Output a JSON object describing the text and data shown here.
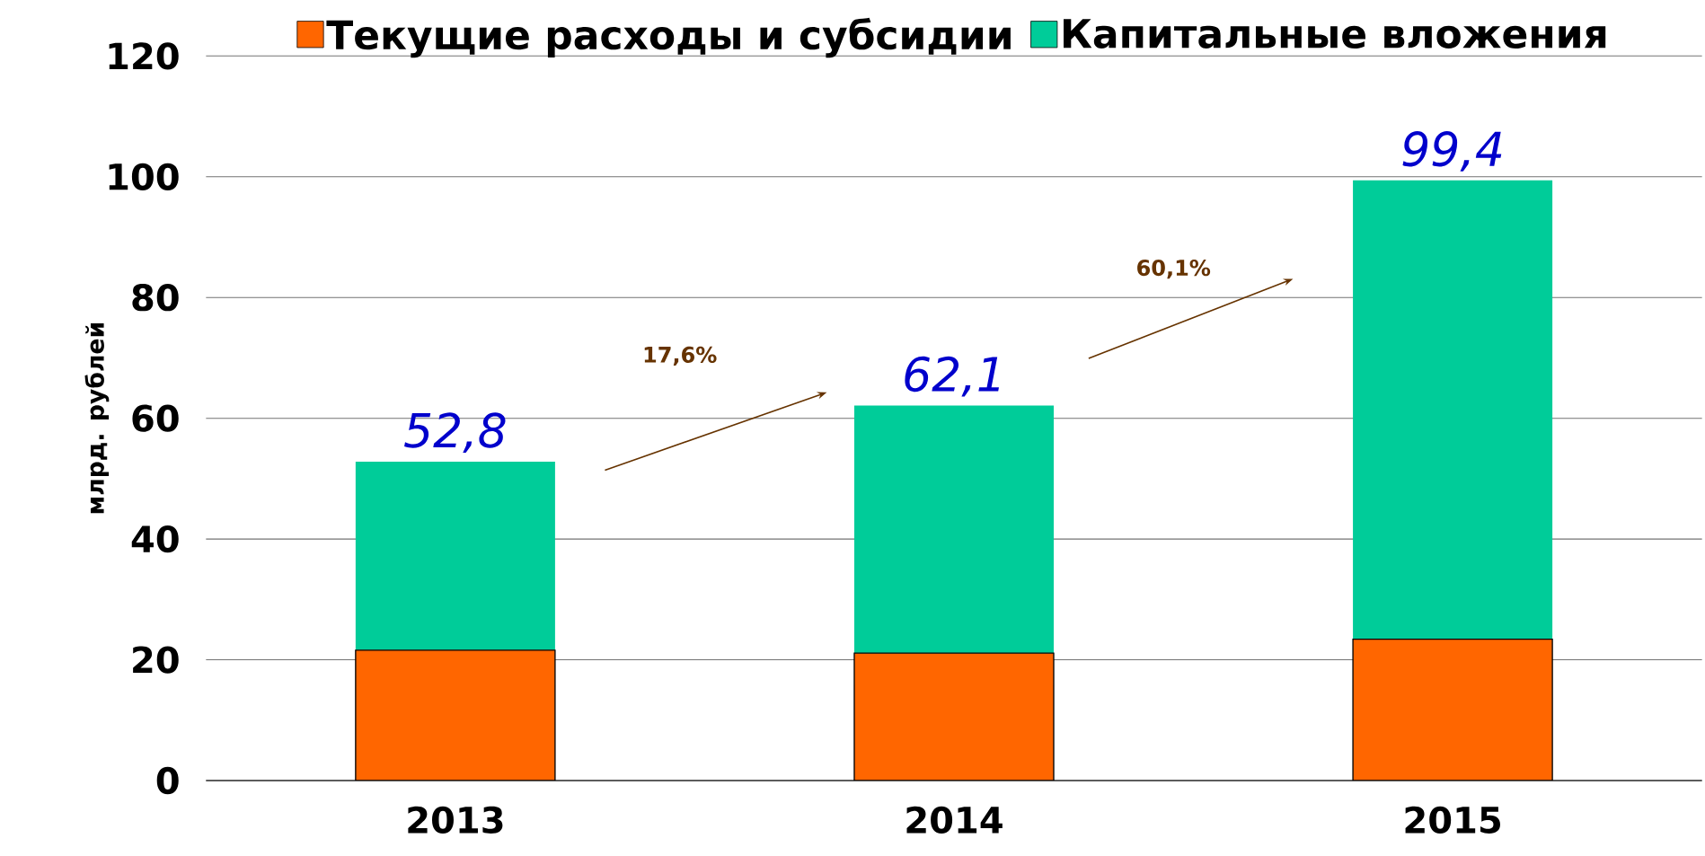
{
  "chart_data": {
    "type": "bar",
    "stacked": true,
    "categories": [
      "2013",
      "2014",
      "2015"
    ],
    "series": [
      {
        "name": "Текущие расходы и субсидии",
        "color": "#ff6600",
        "values": [
          21.6,
          21.1,
          23.4
        ]
      },
      {
        "name": "Капитальные вложения",
        "color": "#00cc99",
        "values": [
          31.2,
          41.0,
          76.0
        ]
      }
    ],
    "totals": [
      "52,8",
      "62,1",
      "99,4"
    ],
    "ylabel": "млрд.  рублей",
    "ylim": [
      0,
      120
    ],
    "yticks": [
      0,
      20,
      40,
      60,
      80,
      100,
      120
    ],
    "grid": "y",
    "legend": "top",
    "annotations": [
      "17,6%",
      "60,1%"
    ]
  }
}
